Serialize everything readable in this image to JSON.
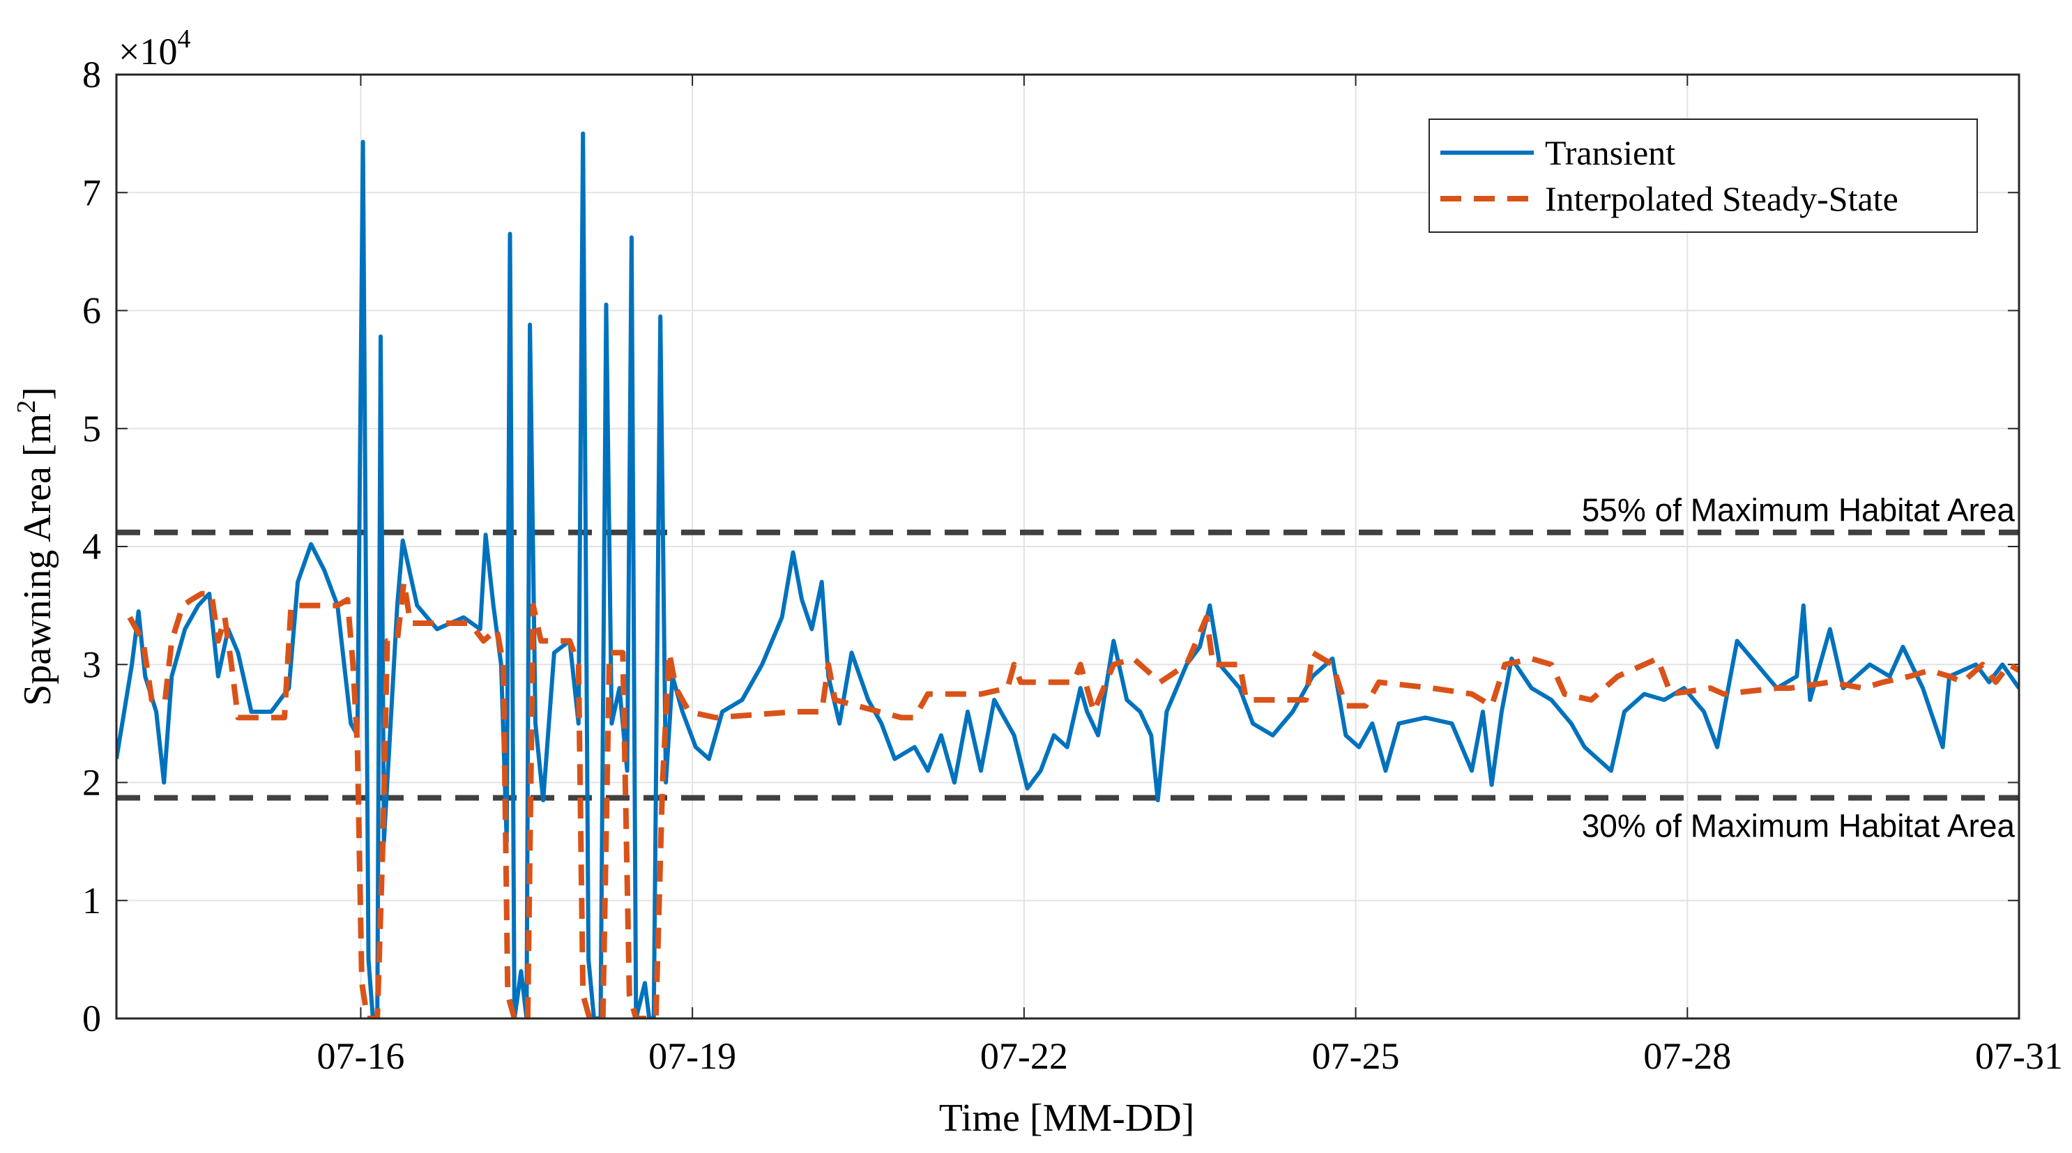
{
  "chart_data": {
    "type": "line",
    "xlabel": "Time [MM-DD]",
    "ylabel": "Spawning Area [m",
    "ylabel_sup": "2",
    "ylabel_end": "]",
    "y_exponent_base": "×10",
    "y_exponent": "4",
    "xlim": [
      13.79,
      31
    ],
    "xticks": [
      {
        "value": 16,
        "label": "07-16"
      },
      {
        "value": 19,
        "label": "07-19"
      },
      {
        "value": 22,
        "label": "07-22"
      },
      {
        "value": 25,
        "label": "07-25"
      },
      {
        "value": 28,
        "label": "07-28"
      },
      {
        "value": 31,
        "label": "07-31"
      }
    ],
    "ylim": [
      0,
      8
    ],
    "yticks": [
      0,
      1,
      2,
      3,
      4,
      5,
      6,
      7,
      8
    ],
    "grid": true,
    "legend": "northeast",
    "reference_lines": [
      {
        "value": 4.12,
        "label": "55% of Maximum Habitat Area",
        "color": "#404040"
      },
      {
        "value": 1.87,
        "label": "30% of Maximum Habitat Area",
        "color": "#404040"
      }
    ],
    "series": [
      {
        "name": "Transient",
        "color": "#0072bd",
        "dash": false,
        "x": [
          13.79,
          13.93,
          13.99,
          14.05,
          14.15,
          14.22,
          14.29,
          14.41,
          14.53,
          14.63,
          14.71,
          14.8,
          14.89,
          15.01,
          15.19,
          15.35,
          15.43,
          15.55,
          15.67,
          15.79,
          15.91,
          15.97,
          16.02,
          16.07,
          16.11,
          16.15,
          16.18,
          16.21,
          16.27,
          16.33,
          16.38,
          16.51,
          16.69,
          16.93,
          17.08,
          17.13,
          17.2,
          17.27,
          17.32,
          17.35,
          17.39,
          17.45,
          17.5,
          17.53,
          17.58,
          17.65,
          17.75,
          17.89,
          17.97,
          18.01,
          18.06,
          18.11,
          18.17,
          18.22,
          18.27,
          18.34,
          18.41,
          18.45,
          18.49,
          18.57,
          18.61,
          18.65,
          18.71,
          18.76,
          18.82,
          18.91,
          19.03,
          19.15,
          19.27,
          19.45,
          19.63,
          19.81,
          19.91,
          19.99,
          20.08,
          20.17,
          20.23,
          20.33,
          20.44,
          20.59,
          20.71,
          20.83,
          21.01,
          21.13,
          21.25,
          21.37,
          21.49,
          21.61,
          21.73,
          21.91,
          22.03,
          22.15,
          22.27,
          22.39,
          22.51,
          22.57,
          22.67,
          22.81,
          22.93,
          23.05,
          23.15,
          23.21,
          23.29,
          23.47,
          23.59,
          23.68,
          23.77,
          23.95,
          24.07,
          24.25,
          24.43,
          24.61,
          24.79,
          24.91,
          25.03,
          25.15,
          25.27,
          25.39,
          25.63,
          25.87,
          26.05,
          26.15,
          26.23,
          26.32,
          26.41,
          26.59,
          26.77,
          26.95,
          27.07,
          27.19,
          27.31,
          27.43,
          27.61,
          27.79,
          27.97,
          28.15,
          28.27,
          28.45,
          28.63,
          28.81,
          28.99,
          29.05,
          29.11,
          29.29,
          29.41,
          29.65,
          29.83,
          29.95,
          30.13,
          30.31,
          30.37,
          30.61,
          30.73,
          30.85,
          31.0
        ],
        "values": [
          2.2,
          3.0,
          3.45,
          2.9,
          2.6,
          2.0,
          2.9,
          3.3,
          3.5,
          3.6,
          2.9,
          3.3,
          3.1,
          2.6,
          2.6,
          2.8,
          3.7,
          4.02,
          3.8,
          3.5,
          2.5,
          2.4,
          7.43,
          0.5,
          0,
          0,
          5.78,
          1.5,
          2.5,
          3.5,
          4.05,
          3.5,
          3.3,
          3.4,
          3.3,
          4.1,
          3.5,
          3.0,
          1.5,
          6.65,
          0,
          0.4,
          0,
          5.88,
          2.5,
          1.85,
          3.1,
          3.2,
          2.5,
          7.5,
          0.5,
          0,
          0,
          6.05,
          2.5,
          2.8,
          2.1,
          6.62,
          0,
          0.3,
          0,
          0,
          5.95,
          2.0,
          2.9,
          2.6,
          2.3,
          2.2,
          2.6,
          2.7,
          3.0,
          3.4,
          3.95,
          3.55,
          3.3,
          3.7,
          2.9,
          2.5,
          3.1,
          2.7,
          2.5,
          2.2,
          2.3,
          2.1,
          2.4,
          2.0,
          2.6,
          2.1,
          2.7,
          2.4,
          1.95,
          2.1,
          2.4,
          2.3,
          2.8,
          2.6,
          2.4,
          3.2,
          2.7,
          2.6,
          2.4,
          1.85,
          2.6,
          3.0,
          3.15,
          3.5,
          3.0,
          2.8,
          2.5,
          2.4,
          2.6,
          2.9,
          3.05,
          2.4,
          2.3,
          2.5,
          2.1,
          2.5,
          2.55,
          2.5,
          2.1,
          2.6,
          1.98,
          2.6,
          3.05,
          2.8,
          2.7,
          2.5,
          2.3,
          2.2,
          2.1,
          2.6,
          2.75,
          2.7,
          2.8,
          2.6,
          2.3,
          3.2,
          3.0,
          2.8,
          2.9,
          3.5,
          2.7,
          3.3,
          2.8,
          3.0,
          2.9,
          3.15,
          2.8,
          2.3,
          2.9,
          3.0,
          2.85,
          3.0,
          2.8
        ]
      },
      {
        "name": "Interpolated Steady-State",
        "color": "#d95319",
        "dash": true,
        "x": [
          13.91,
          14.03,
          14.11,
          14.23,
          14.29,
          14.39,
          14.47,
          14.56,
          14.65,
          14.71,
          14.77,
          14.83,
          14.89,
          15.31,
          15.37,
          15.79,
          15.88,
          15.93,
          15.97,
          16.01,
          16.06,
          16.15,
          16.2,
          16.24,
          16.33,
          16.39,
          16.45,
          16.99,
          17.11,
          17.23,
          17.29,
          17.33,
          17.39,
          17.51,
          17.56,
          17.63,
          17.89,
          17.97,
          18.01,
          18.07,
          18.19,
          18.25,
          18.37,
          18.43,
          18.49,
          18.67,
          18.73,
          18.79,
          18.85,
          18.97,
          19.21,
          19.93,
          20.17,
          20.23,
          20.29,
          20.89,
          21.01,
          21.13,
          21.61,
          21.85,
          21.91,
          21.97,
          22.45,
          22.51,
          22.63,
          22.81,
          22.99,
          23.05,
          23.23,
          23.47,
          23.65,
          23.71,
          23.95,
          24.01,
          24.55,
          24.61,
          24.79,
          24.91,
          25.09,
          25.21,
          25.69,
          26.05,
          26.23,
          26.35,
          26.59,
          26.77,
          26.89,
          27.13,
          27.37,
          27.73,
          27.85,
          28.21,
          28.33,
          28.81,
          28.93,
          29.29,
          29.59,
          29.77,
          30.01,
          30.19,
          30.37,
          30.49,
          30.67,
          30.79,
          30.91,
          31.0
        ],
        "values": [
          3.4,
          3.2,
          2.7,
          2.7,
          3.2,
          3.5,
          3.55,
          3.6,
          3.6,
          3.2,
          3.4,
          3.0,
          2.55,
          2.55,
          3.5,
          3.5,
          3.55,
          3.0,
          2.3,
          0.3,
          0,
          0,
          1.5,
          3.2,
          3.2,
          3.7,
          3.35,
          3.35,
          3.2,
          3.3,
          3.0,
          0.2,
          0,
          0,
          3.5,
          3.2,
          3.2,
          3.0,
          0.2,
          0,
          0,
          3.1,
          3.1,
          0.2,
          0,
          0,
          2.0,
          3.1,
          2.8,
          2.6,
          2.55,
          2.6,
          2.6,
          3.0,
          2.7,
          2.55,
          2.55,
          2.75,
          2.75,
          2.8,
          3.0,
          2.85,
          2.85,
          3.0,
          2.6,
          3.0,
          3.05,
          3.0,
          2.85,
          3.0,
          3.4,
          3.0,
          3.0,
          2.7,
          2.7,
          3.1,
          3.0,
          2.65,
          2.65,
          2.85,
          2.8,
          2.75,
          2.65,
          3.0,
          3.05,
          3.0,
          2.75,
          2.7,
          2.9,
          3.05,
          2.75,
          2.8,
          2.75,
          2.8,
          2.8,
          2.85,
          2.8,
          2.85,
          2.9,
          2.95,
          2.9,
          2.85,
          3.0,
          2.85,
          3.0,
          2.95
        ]
      }
    ]
  }
}
